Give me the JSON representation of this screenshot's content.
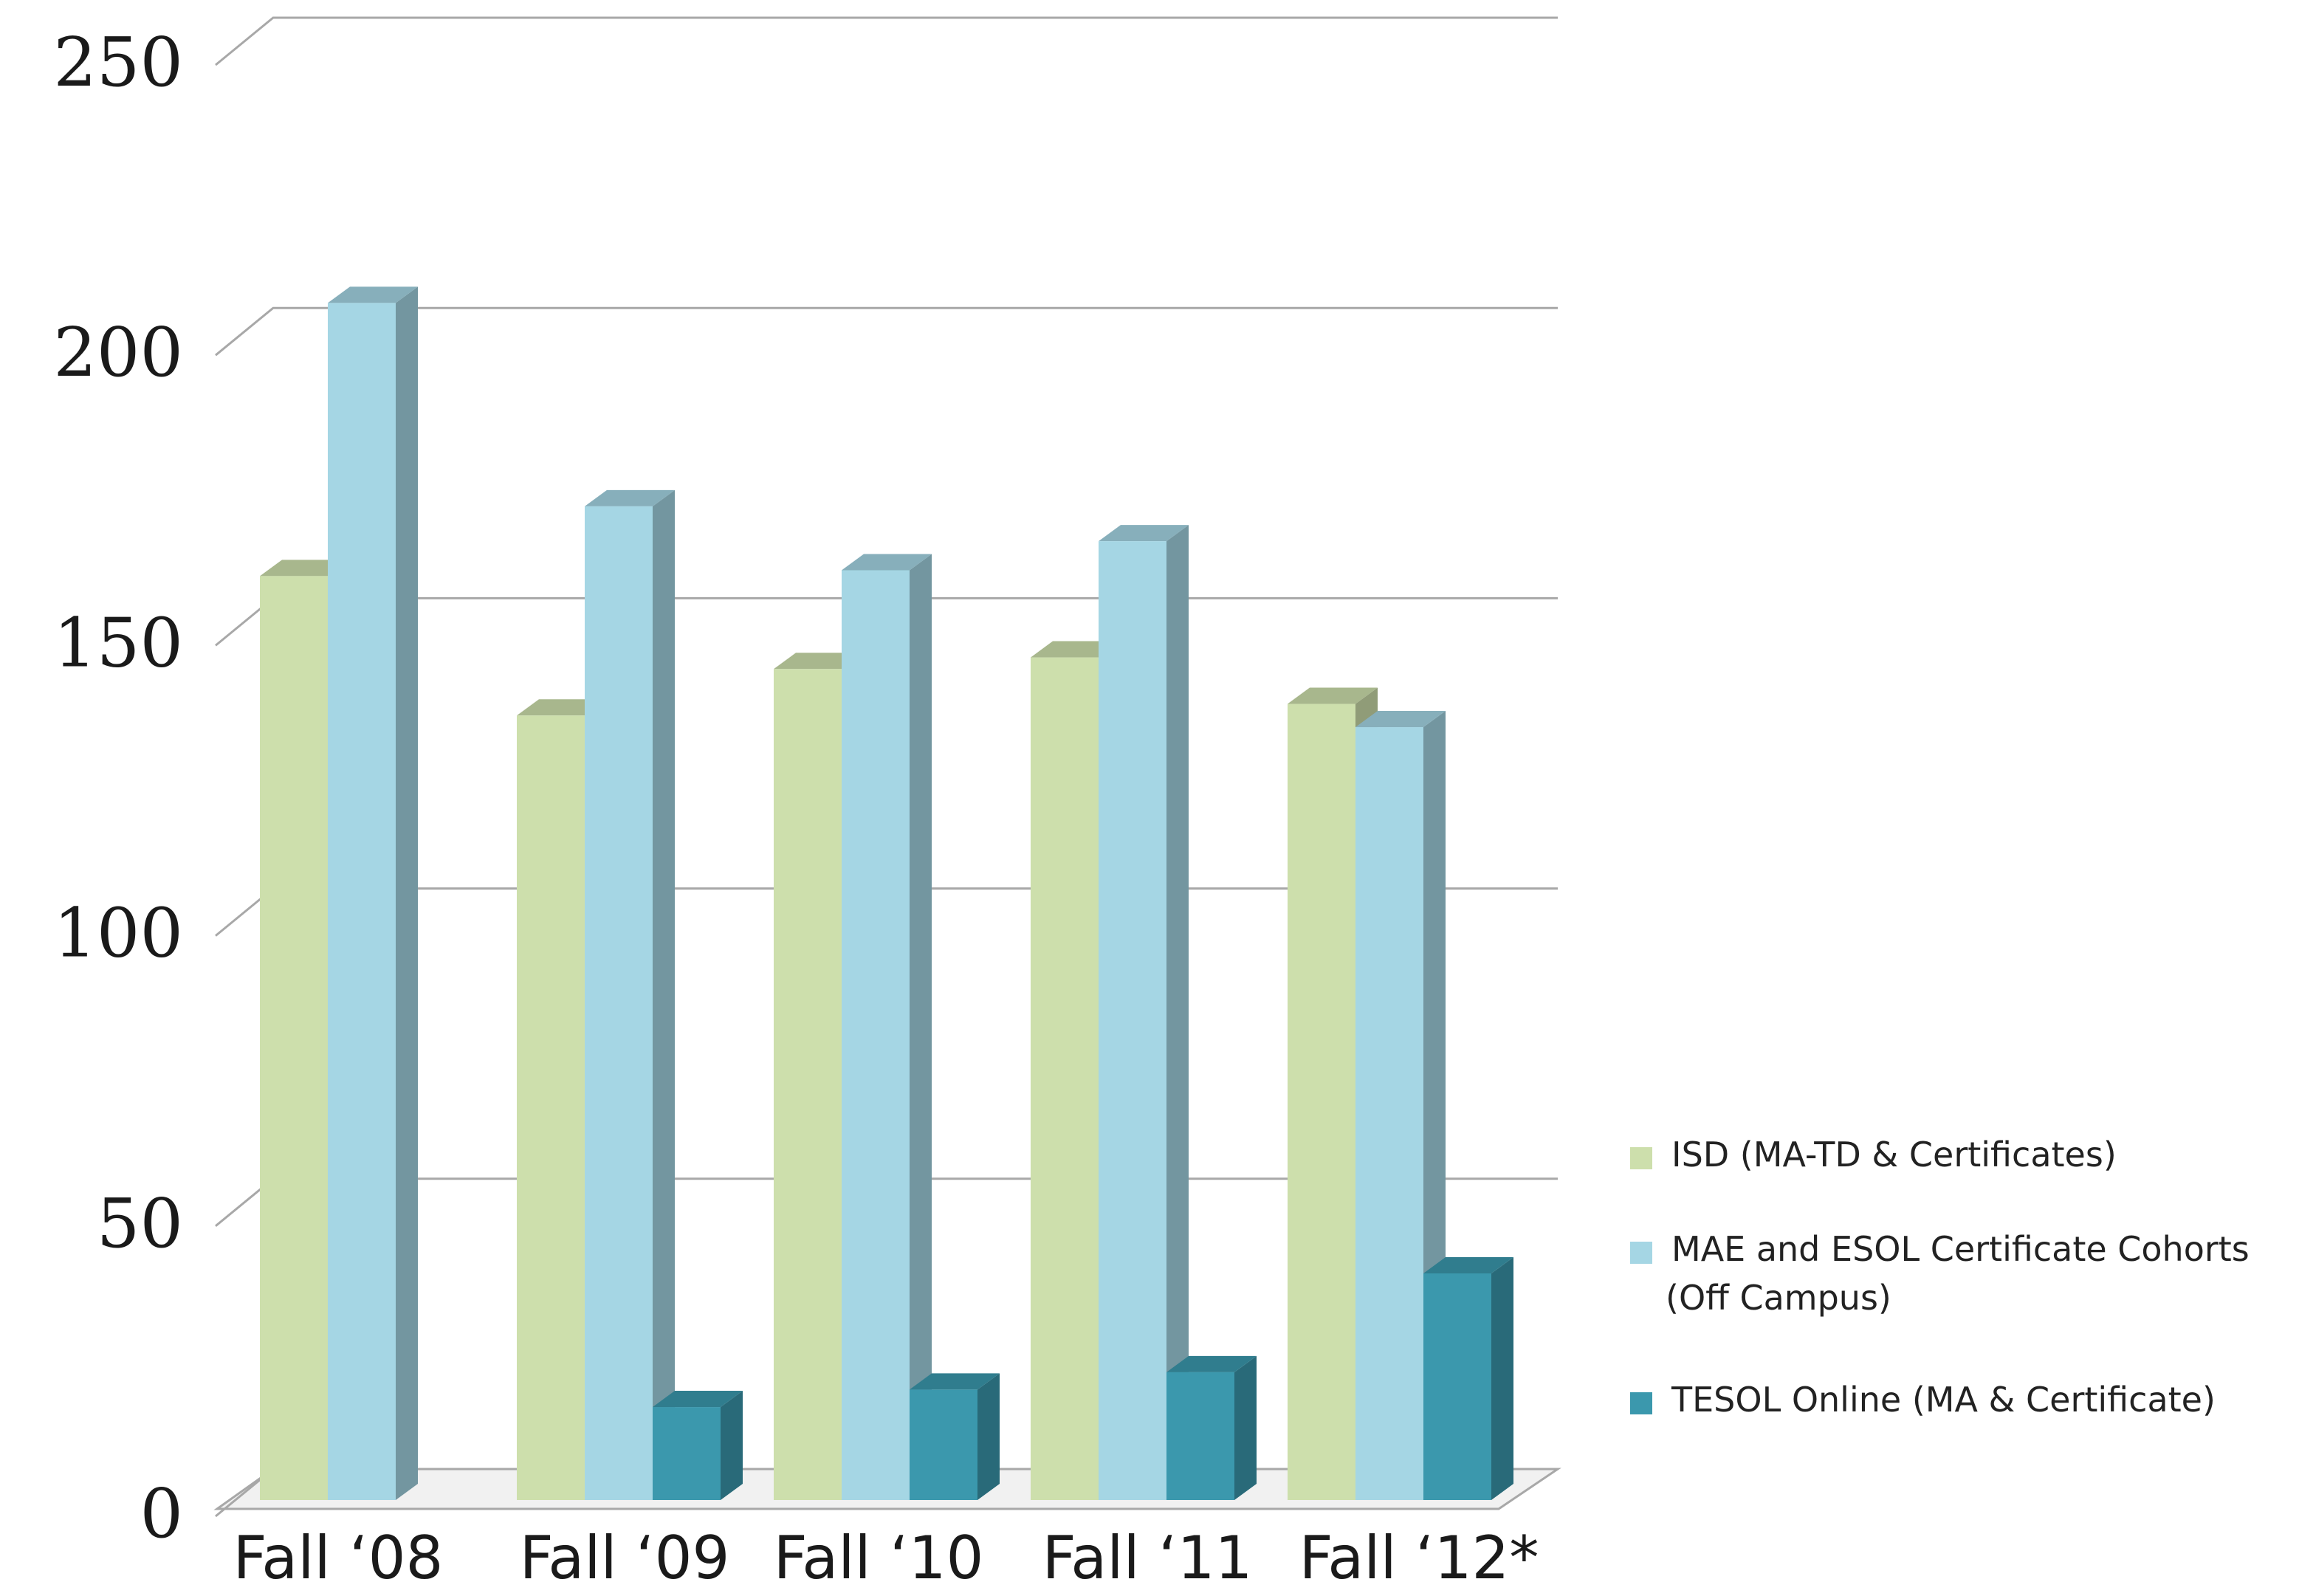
{
  "chart_data": {
    "type": "bar",
    "categories": [
      "Fall ‘08",
      "Fall ‘09",
      "Fall ‘10",
      "Fall ‘11",
      "Fall ‘12*"
    ],
    "series": [
      {
        "name": "ISD (MA-TD & Certificates)",
        "color": "#cddfac",
        "values": [
          159,
          135,
          143,
          145,
          137
        ]
      },
      {
        "name": "MAE and ESOL Certificate Cohorts (Off Campus)",
        "legend_lines": [
          "MAE and ESOL Certificate Cohorts",
          "(Off Campus)"
        ],
        "color": "#a5d6e4",
        "values": [
          206,
          171,
          160,
          165,
          133
        ]
      },
      {
        "name": "TESOL Online (MA & Certificate)",
        "color": "#3b98ad",
        "values": [
          0,
          16,
          19,
          22,
          39
        ]
      }
    ],
    "y_ticks": [
      "0",
      "50",
      "100",
      "150",
      "200",
      "250"
    ],
    "ylim": [
      0,
      250
    ],
    "grid": true,
    "legend_position": "right",
    "title": "",
    "xlabel": "",
    "ylabel": ""
  }
}
